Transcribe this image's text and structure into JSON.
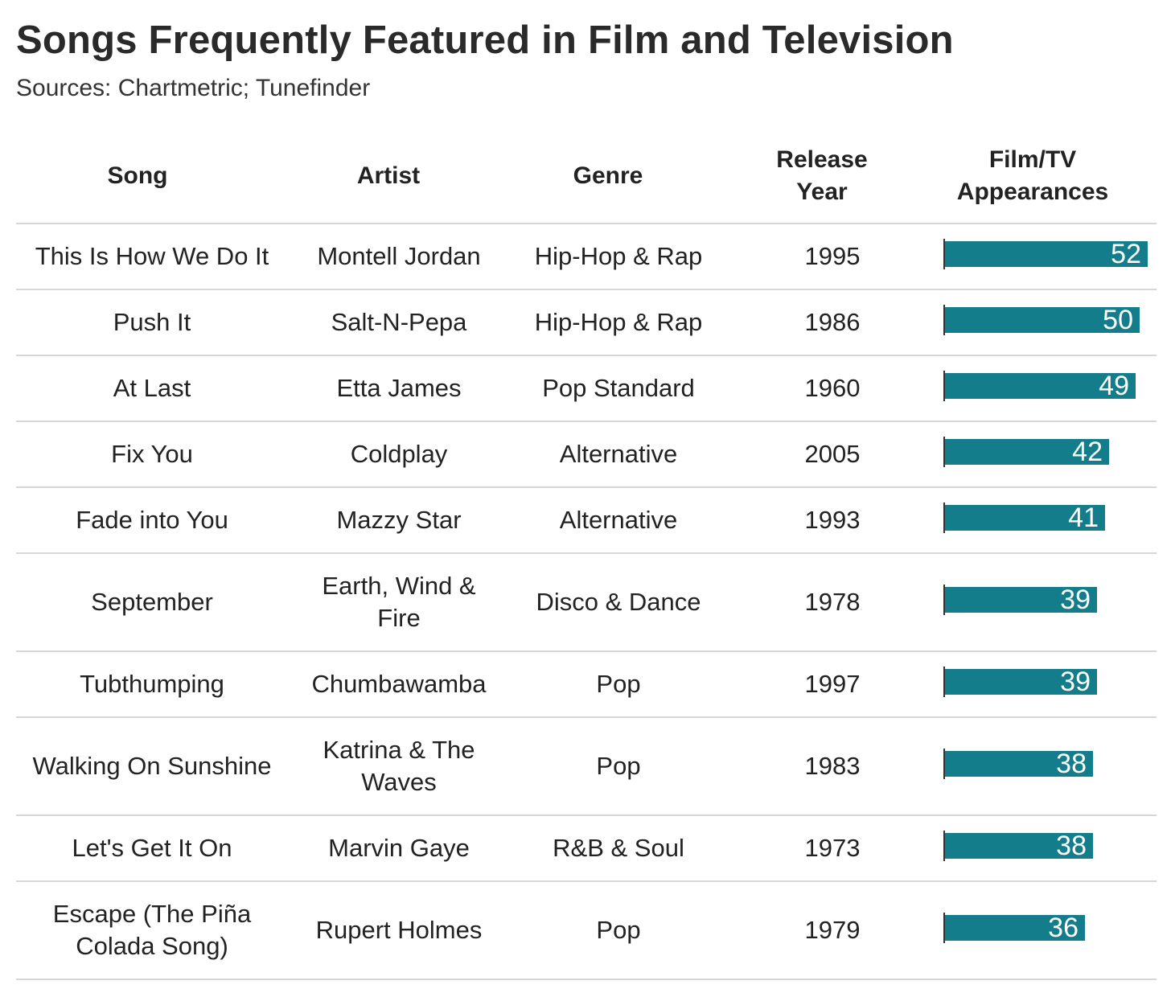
{
  "title": "Songs Frequently Featured in Film and Television",
  "subtitle": "Sources: Chartmetric; Tunefinder",
  "headers": {
    "song": "Song",
    "artist": "Artist",
    "genre": "Genre",
    "year_line1": "Release",
    "year_line2": "Year",
    "appearances_line1": "Film/TV",
    "appearances_line2": "Appearances"
  },
  "colors": {
    "bar": "#137d8b",
    "axis": "#333333",
    "divider": "#d6d6d6"
  },
  "chart_data": {
    "type": "table",
    "title": "Songs Frequently Featured in Film and Television",
    "subtitle": "Sources: Chartmetric; Tunefinder",
    "columns": [
      "Song",
      "Artist",
      "Genre",
      "Release Year",
      "Film/TV Appearances"
    ],
    "value_column": "Film/TV Appearances",
    "xlim": [
      0,
      52
    ],
    "rows": [
      {
        "song": "This Is How We Do It",
        "artist": "Montell Jordan",
        "genre": "Hip-Hop & Rap",
        "year": "1995",
        "appearances": 52
      },
      {
        "song": "Push It",
        "artist": "Salt-N-Pepa",
        "genre": "Hip-Hop & Rap",
        "year": "1986",
        "appearances": 50
      },
      {
        "song": "At Last",
        "artist": "Etta James",
        "genre": "Pop Standard",
        "year": "1960",
        "appearances": 49
      },
      {
        "song": "Fix You",
        "artist": "Coldplay",
        "genre": "Alternative",
        "year": "2005",
        "appearances": 42
      },
      {
        "song": "Fade into You",
        "artist": "Mazzy Star",
        "genre": "Alternative",
        "year": "1993",
        "appearances": 41
      },
      {
        "song": "September",
        "artist": "Earth, Wind & Fire",
        "genre": "Disco & Dance",
        "year": "1978",
        "appearances": 39
      },
      {
        "song": "Tubthumping",
        "artist": "Chumbawamba",
        "genre": "Pop",
        "year": "1997",
        "appearances": 39
      },
      {
        "song": "Walking On Sunshine",
        "artist": "Katrina & The Waves",
        "genre": "Pop",
        "year": "1983",
        "appearances": 38
      },
      {
        "song": "Let's Get It On",
        "artist": "Marvin Gaye",
        "genre": "R&B & Soul",
        "year": "1973",
        "appearances": 38
      },
      {
        "song": "Escape (The Piña Colada Song)",
        "artist": "Rupert Holmes",
        "genre": "Pop",
        "year": "1979",
        "appearances": 36
      }
    ]
  }
}
